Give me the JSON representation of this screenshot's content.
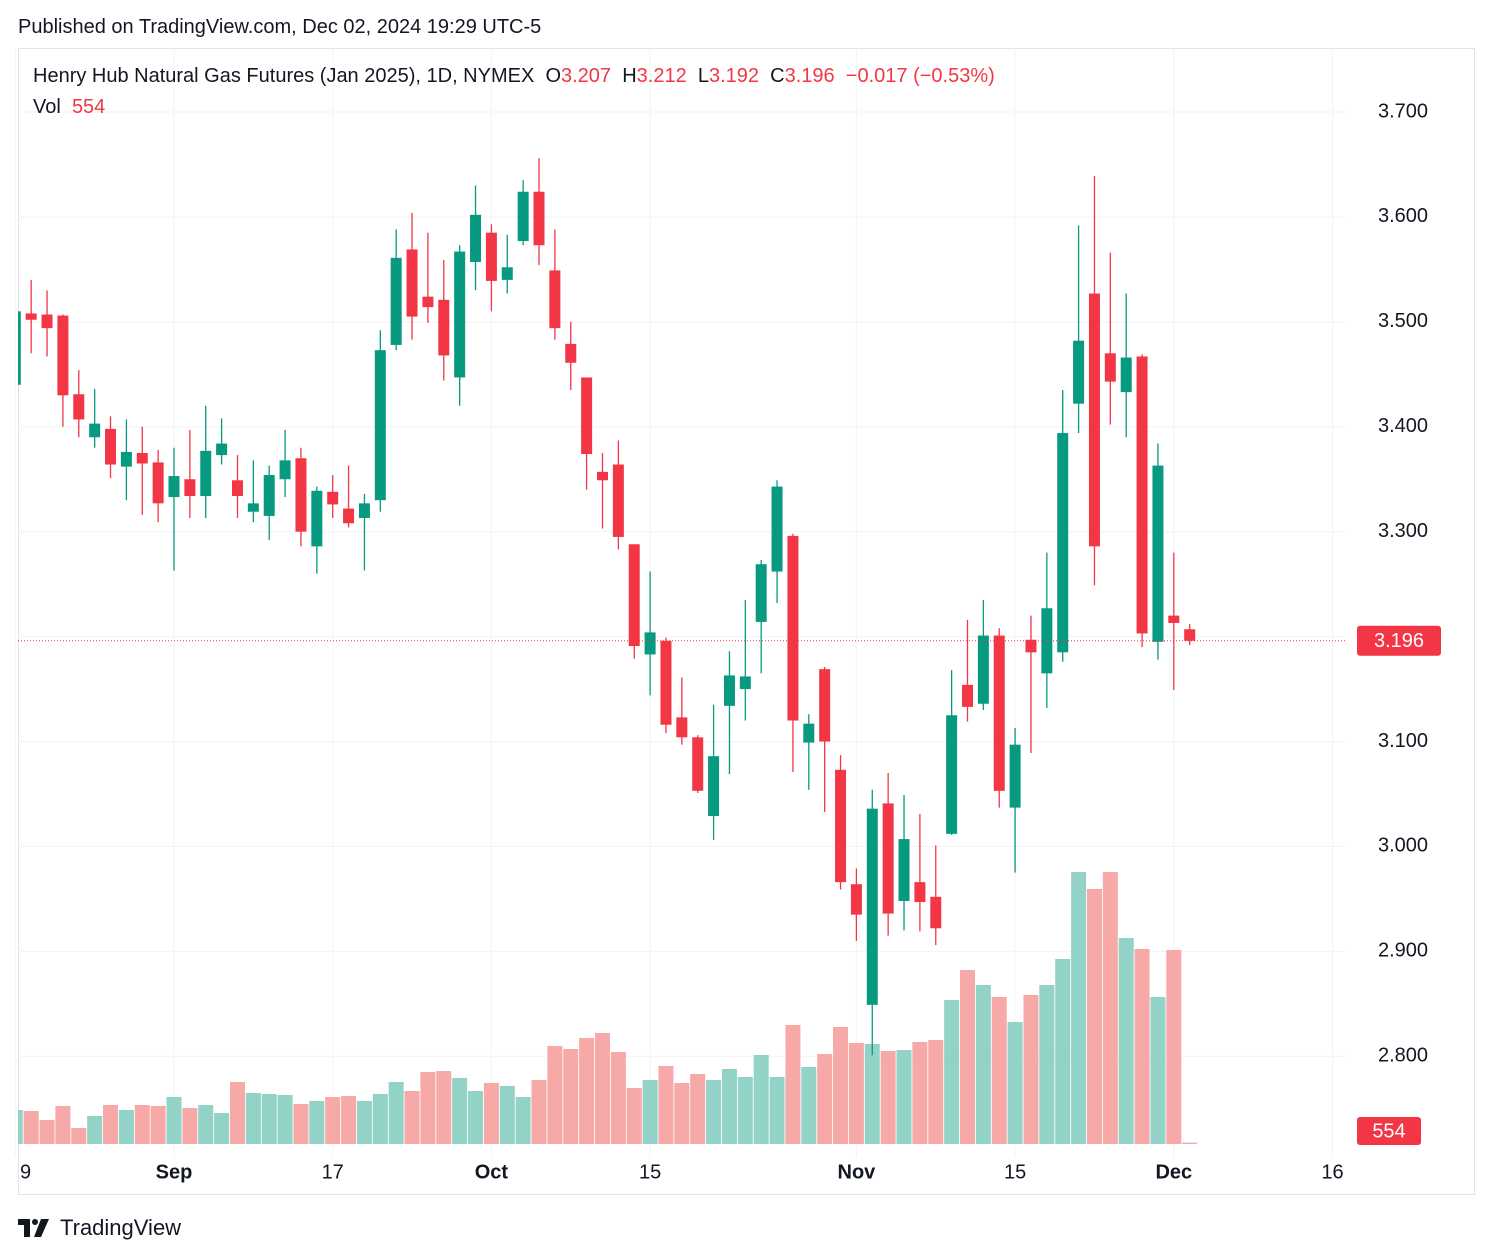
{
  "published": "Published on TradingView.com, Dec 02, 2024 19:29 UTC-5",
  "brand": "TradingView",
  "chart_data": {
    "type": "candlestick",
    "title": "Henry Hub Natural Gas Futures (Jan 2025), 1D, NYMEX",
    "legend": {
      "open": "O",
      "high": "H",
      "low": "L",
      "close": "C",
      "change": "−0.017 (−0.53%)",
      "volume": "Vol"
    },
    "up_color": "#089981",
    "down_color": "#f23645",
    "volume_up_color": "#92d2c7",
    "volume_down_color": "#f7a9a7",
    "grid": true,
    "ylim": [
      2.704,
      3.761
    ],
    "yticks": [
      {
        "value": 2.8,
        "label": "2.800"
      },
      {
        "value": 2.9,
        "label": "2.900"
      },
      {
        "value": 3.0,
        "label": "3.000"
      },
      {
        "value": 3.1,
        "label": "3.100"
      },
      {
        "value": 3.2,
        "label": "3.200"
      },
      {
        "value": 3.3,
        "label": "3.300"
      },
      {
        "value": 3.4,
        "label": "3.400"
      },
      {
        "value": 3.5,
        "label": "3.500"
      },
      {
        "value": 3.6,
        "label": "3.600"
      },
      {
        "value": 3.7,
        "label": "3.700"
      }
    ],
    "categories": [
      "9",
      null,
      null,
      null,
      null,
      null,
      null,
      null,
      null,
      null,
      "Sep",
      null,
      null,
      null,
      null,
      null,
      null,
      null,
      null,
      null,
      "17",
      null,
      null,
      null,
      null,
      null,
      null,
      null,
      null,
      null,
      "Oct",
      null,
      null,
      null,
      null,
      null,
      null,
      null,
      null,
      null,
      "15",
      null,
      null,
      null,
      null,
      null,
      null,
      null,
      null,
      null,
      null,
      null,
      null,
      "Nov",
      null,
      null,
      null,
      null,
      null,
      null,
      null,
      null,
      null,
      "15",
      null,
      null,
      null,
      null,
      null,
      null,
      null,
      null,
      null,
      "Dec",
      null,
      null,
      null,
      null,
      null,
      null,
      null,
      null,
      null,
      "16"
    ],
    "open": [
      3.44,
      3.508,
      3.507,
      3.506,
      3.431,
      3.39,
      3.398,
      3.362,
      3.375,
      3.366,
      3.333,
      3.35,
      3.334,
      3.373,
      3.349,
      3.319,
      3.315,
      3.35,
      3.37,
      3.286,
      3.338,
      3.322,
      3.313,
      3.33,
      3.478,
      3.569,
      3.524,
      3.521,
      3.447,
      3.557,
      3.585,
      3.54,
      3.577,
      3.624,
      3.549,
      3.479,
      3.447,
      3.357,
      3.364,
      3.288,
      3.183,
      3.196,
      3.123,
      3.104,
      3.029,
      3.134,
      3.15,
      3.214,
      3.262,
      3.296,
      3.099,
      3.169,
      3.073,
      2.964,
      2.849,
      3.041,
      2.948,
      2.966,
      2.952,
      3.012,
      3.154,
      3.136,
      3.201,
      3.037,
      3.197,
      3.165,
      3.185,
      3.422,
      3.527,
      3.47,
      3.433,
      3.467,
      3.195,
      3.22,
      3.207,
      null,
      null,
      null,
      null,
      null,
      null,
      null,
      null,
      null
    ],
    "high": [
      3.51,
      3.54,
      3.53,
      3.507,
      3.454,
      3.436,
      3.41,
      3.407,
      3.4,
      3.378,
      3.38,
      3.397,
      3.42,
      3.408,
      3.373,
      3.368,
      3.363,
      3.397,
      3.38,
      3.343,
      3.354,
      3.363,
      3.336,
      3.492,
      3.588,
      3.604,
      3.585,
      3.559,
      3.573,
      3.63,
      3.593,
      3.583,
      3.635,
      3.656,
      3.588,
      3.5,
      3.447,
      3.375,
      3.387,
      3.288,
      3.262,
      3.199,
      3.161,
      3.106,
      3.135,
      3.186,
      3.235,
      3.273,
      3.349,
      3.298,
      3.126,
      3.171,
      3.087,
      2.979,
      3.054,
      3.07,
      3.049,
      3.031,
      3.001,
      3.168,
      3.216,
      3.235,
      3.208,
      3.113,
      3.22,
      3.28,
      3.435,
      3.592,
      3.639,
      3.566,
      3.527,
      3.469,
      3.384,
      3.28,
      3.212,
      null,
      null,
      null,
      null,
      null,
      null,
      null,
      null,
      null
    ],
    "low": [
      3.43,
      3.47,
      3.467,
      3.4,
      3.39,
      3.38,
      3.351,
      3.33,
      3.316,
      3.309,
      3.263,
      3.313,
      3.313,
      3.364,
      3.313,
      3.309,
      3.292,
      3.333,
      3.286,
      3.26,
      3.313,
      3.304,
      3.263,
      3.319,
      3.473,
      3.483,
      3.499,
      3.444,
      3.42,
      3.53,
      3.51,
      3.527,
      3.573,
      3.554,
      3.483,
      3.435,
      3.34,
      3.303,
      3.283,
      3.179,
      3.144,
      3.108,
      3.097,
      3.051,
      3.006,
      3.069,
      3.12,
      3.165,
      3.232,
      3.071,
      3.054,
      3.033,
      2.959,
      2.91,
      2.801,
      2.915,
      2.92,
      2.919,
      2.906,
      3.011,
      3.119,
      3.13,
      3.037,
      2.975,
      3.089,
      3.132,
      3.176,
      3.394,
      3.249,
      3.402,
      3.39,
      3.19,
      3.178,
      3.149,
      3.192,
      null,
      null,
      null,
      null,
      null,
      null,
      null,
      null,
      null
    ],
    "close": [
      3.51,
      3.502,
      3.494,
      3.43,
      3.407,
      3.403,
      3.364,
      3.376,
      3.365,
      3.327,
      3.353,
      3.334,
      3.377,
      3.384,
      3.334,
      3.327,
      3.354,
      3.368,
      3.3,
      3.339,
      3.326,
      3.308,
      3.327,
      3.473,
      3.561,
      3.505,
      3.514,
      3.468,
      3.567,
      3.602,
      3.539,
      3.552,
      3.624,
      3.573,
      3.494,
      3.461,
      3.374,
      3.349,
      3.295,
      3.191,
      3.204,
      3.116,
      3.104,
      3.053,
      3.086,
      3.163,
      3.162,
      3.269,
      3.343,
      3.12,
      3.117,
      3.1,
      2.966,
      2.935,
      3.036,
      2.936,
      3.007,
      2.947,
      2.922,
      3.125,
      3.133,
      3.201,
      3.053,
      3.097,
      3.185,
      3.227,
      3.394,
      3.482,
      3.286,
      3.443,
      3.466,
      3.203,
      3.363,
      3.213,
      3.196,
      null,
      null,
      null,
      null,
      null,
      null,
      null,
      null,
      null
    ],
    "volume": [
      13600,
      13200,
      9600,
      15200,
      6400,
      11200,
      15600,
      13600,
      15600,
      15200,
      18800,
      14400,
      15600,
      12400,
      24800,
      20400,
      20000,
      19600,
      16000,
      17200,
      18800,
      19200,
      17200,
      20000,
      24800,
      21200,
      28800,
      29200,
      26400,
      21200,
      24400,
      23200,
      18800,
      25600,
      39200,
      38000,
      42400,
      44400,
      36800,
      22400,
      25600,
      31200,
      24400,
      28000,
      25600,
      30000,
      26800,
      35600,
      26800,
      47600,
      30800,
      36000,
      46800,
      40400,
      40000,
      37200,
      37600,
      40800,
      41600,
      57600,
      69600,
      63600,
      58800,
      48800,
      59600,
      63600,
      74000,
      108800,
      102000,
      108800,
      82400,
      78000,
      58800,
      77600,
      554,
      null,
      null,
      null,
      null,
      null,
      null,
      null,
      null,
      null
    ]
  }
}
